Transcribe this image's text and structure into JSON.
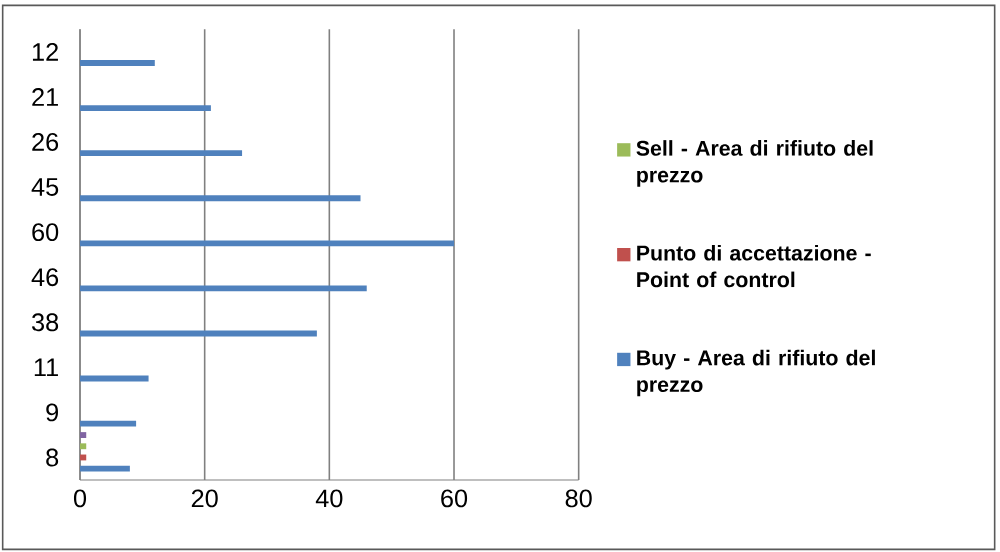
{
  "chart_data": {
    "type": "bar",
    "orientation": "horizontal",
    "categories": [
      "12",
      "21",
      "26",
      "45",
      "60",
      "46",
      "38",
      "11",
      "9",
      "8"
    ],
    "series": [
      {
        "name": "Buy - Area di rifiuto del prezzo",
        "color": "#4f81bd",
        "values": [
          12,
          21,
          26,
          45,
          60,
          46,
          38,
          11,
          9,
          8
        ]
      },
      {
        "name": "Punto di accettazione - Point of control",
        "color": "#c0504d",
        "values": [
          null,
          null,
          null,
          null,
          null,
          null,
          null,
          null,
          null,
          1
        ]
      },
      {
        "name": "Sell - Area di rifiuto del prezzo",
        "color": "#9bbb59",
        "values": [
          null,
          null,
          null,
          null,
          null,
          null,
          null,
          null,
          null,
          1
        ]
      },
      {
        "color": "#8064a2",
        "values": [
          null,
          null,
          null,
          null,
          null,
          null,
          null,
          null,
          null,
          1
        ]
      }
    ],
    "xlim": [
      0,
      80
    ],
    "xticks": [
      0,
      20,
      40,
      60,
      80
    ],
    "grid": "x",
    "legend": "right"
  }
}
